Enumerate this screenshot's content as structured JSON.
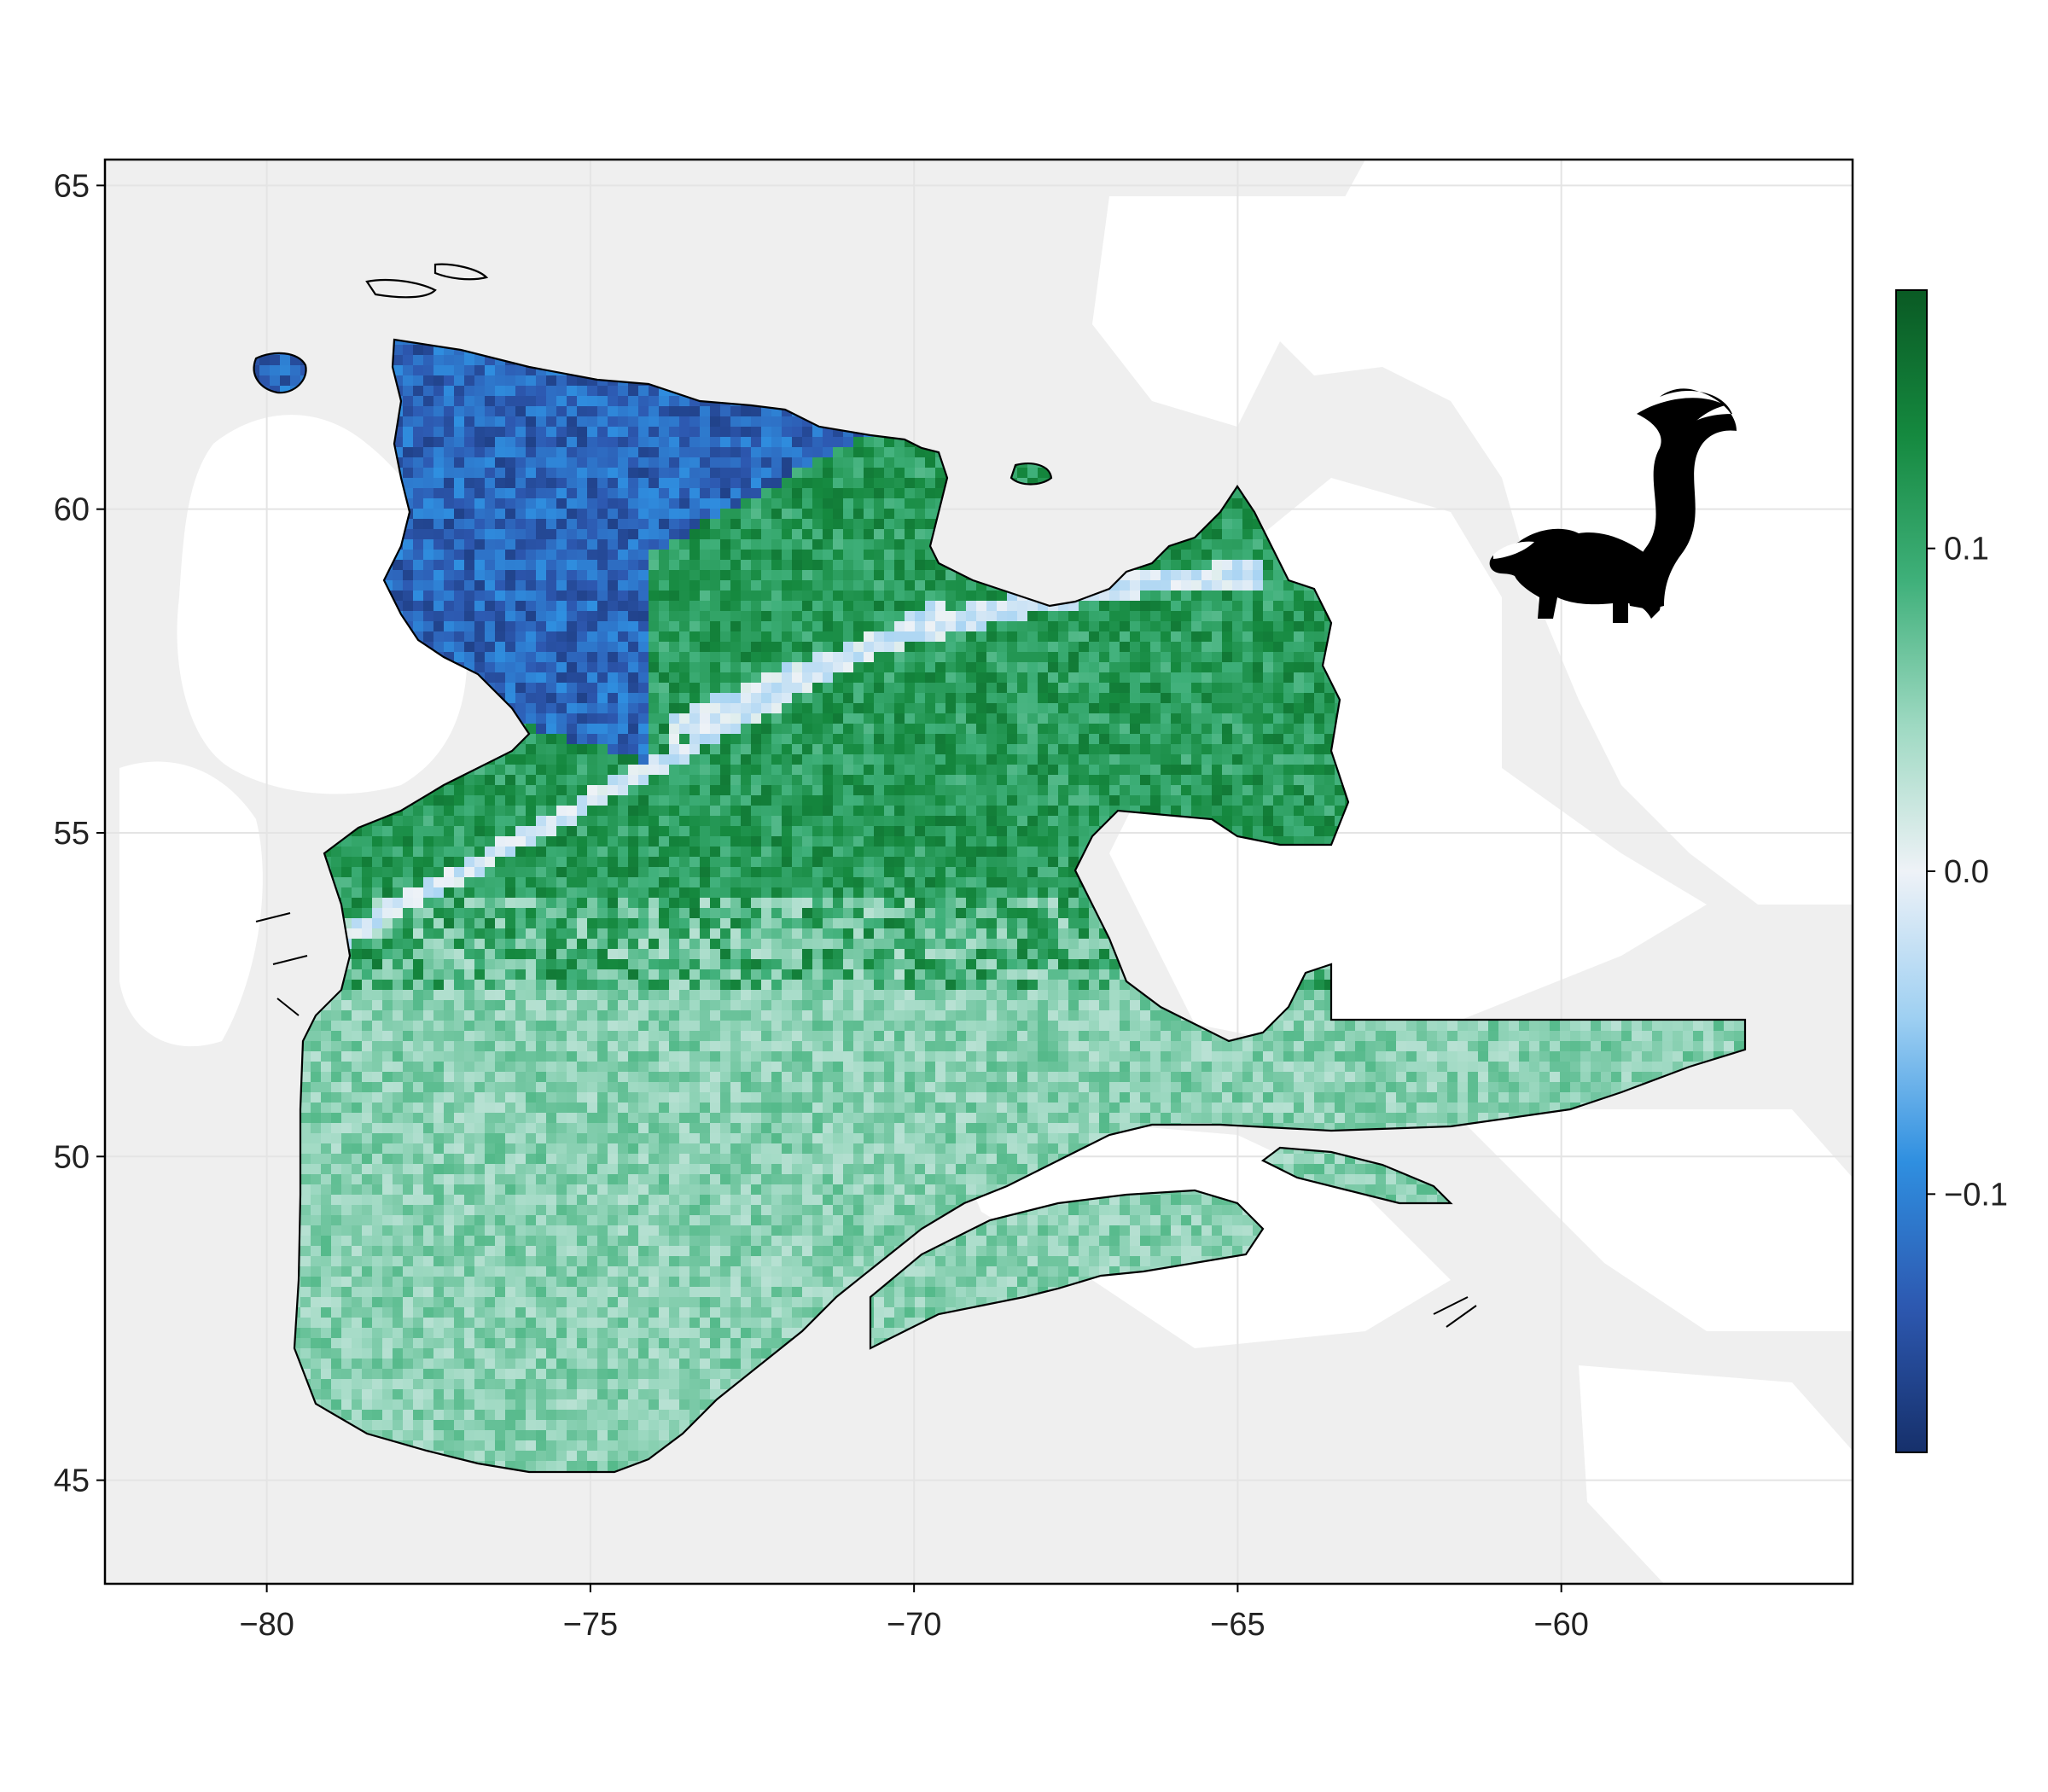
{
  "chart_data": {
    "type": "heatmap",
    "title": "",
    "xlabel": "",
    "ylabel": "",
    "xlim": [
      -82.5,
      -55.5
    ],
    "ylim": [
      43.4,
      65.4
    ],
    "x_ticks": [
      {
        "value": -80,
        "label": "−80"
      },
      {
        "value": -75,
        "label": "−75"
      },
      {
        "value": -70,
        "label": "−70"
      },
      {
        "value": -65,
        "label": "−65"
      },
      {
        "value": -60,
        "label": "−60"
      }
    ],
    "y_ticks": [
      {
        "value": 45,
        "label": "45"
      },
      {
        "value": 50,
        "label": "50"
      },
      {
        "value": 55,
        "label": "55"
      },
      {
        "value": 60,
        "label": "60"
      },
      {
        "value": 65,
        "label": "65"
      }
    ],
    "grid": true,
    "colorbar": {
      "range": [
        -0.18,
        0.18
      ],
      "ticks": [
        {
          "value": 0.1,
          "label": "0.1"
        },
        {
          "value": 0.0,
          "label": "0.0"
        },
        {
          "value": -0.1,
          "label": "−0.1"
        }
      ],
      "colors": [
        "#16306b",
        "#2d58b0",
        "#2f8fe0",
        "#9fd0f2",
        "#eef2f7",
        "#9ed9c2",
        "#3fb07a",
        "#15893f",
        "#0a5a24"
      ]
    },
    "colors": {
      "land_background": "#efefef",
      "water": "#ffffff",
      "coastline": "#000000",
      "grid": "#e4e4e4"
    },
    "icon": "skunk-silhouette-icon",
    "regions": [
      {
        "name": "north_negative",
        "value_range": [
          -0.16,
          -0.09
        ]
      },
      {
        "name": "transition_band",
        "value_range": [
          -0.04,
          0.01
        ]
      },
      {
        "name": "central_positive",
        "value_range": [
          0.08,
          0.15
        ]
      },
      {
        "name": "southern_positive",
        "value_range": [
          0.03,
          0.08
        ]
      }
    ]
  }
}
